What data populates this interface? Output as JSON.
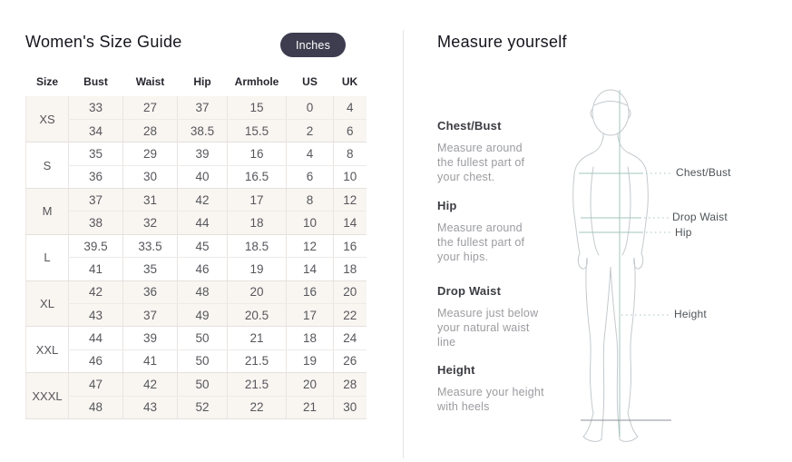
{
  "left_panel": {
    "title": "Women's Size Guide",
    "unit_toggle": "Inches",
    "table": {
      "headers": [
        "Size",
        "Bust",
        "Waist",
        "Hip",
        "Armhole",
        "US",
        "UK"
      ],
      "groups": [
        {
          "size": "XS",
          "rows": [
            [
              "33",
              "27",
              "37",
              "15",
              "0",
              "4"
            ],
            [
              "34",
              "28",
              "38.5",
              "15.5",
              "2",
              "6"
            ]
          ]
        },
        {
          "size": "S",
          "rows": [
            [
              "35",
              "29",
              "39",
              "16",
              "4",
              "8"
            ],
            [
              "36",
              "30",
              "40",
              "16.5",
              "6",
              "10"
            ]
          ]
        },
        {
          "size": "M",
          "rows": [
            [
              "37",
              "31",
              "42",
              "17",
              "8",
              "12"
            ],
            [
              "38",
              "32",
              "44",
              "18",
              "10",
              "14"
            ]
          ]
        },
        {
          "size": "L",
          "rows": [
            [
              "39.5",
              "33.5",
              "45",
              "18.5",
              "12",
              "16"
            ],
            [
              "41",
              "35",
              "46",
              "19",
              "14",
              "18"
            ]
          ]
        },
        {
          "size": "XL",
          "rows": [
            [
              "42",
              "36",
              "48",
              "20",
              "16",
              "20"
            ],
            [
              "43",
              "37",
              "49",
              "20.5",
              "17",
              "22"
            ]
          ]
        },
        {
          "size": "XXL",
          "rows": [
            [
              "44",
              "39",
              "50",
              "21",
              "18",
              "24"
            ],
            [
              "46",
              "41",
              "50",
              "21.5",
              "19",
              "26"
            ]
          ]
        },
        {
          "size": "XXXL",
          "rows": [
            [
              "47",
              "42",
              "50",
              "21.5",
              "20",
              "28"
            ],
            [
              "48",
              "43",
              "52",
              "22",
              "21",
              "30"
            ]
          ]
        }
      ]
    }
  },
  "right_panel": {
    "title": "Measure yourself",
    "instructions": [
      {
        "label": "Chest/Bust",
        "text": "Measure around\nthe fullest part of\nyour chest."
      },
      {
        "label": "Hip",
        "text": "Measure around\nthe fullest part of\nyour hips."
      },
      {
        "label": "Drop Waist",
        "text": "Measure just below\nyour natural waist\nline"
      },
      {
        "label": "Height",
        "text": "Measure your height\nwith heels"
      }
    ],
    "diagram_labels": [
      "Chest/Bust",
      "Drop Waist",
      "Hip",
      "Height"
    ]
  },
  "colors": {
    "pill_background": "#3d3d4f",
    "pill_text": "#ffffff",
    "row_stripe": "#f9f5f1",
    "table_border": "#e8e4e1",
    "measure_line": "#a5c6be",
    "figure_outline": "#c4c9cd",
    "ground_line": "#8b9298",
    "label_text": "#4e5357"
  }
}
